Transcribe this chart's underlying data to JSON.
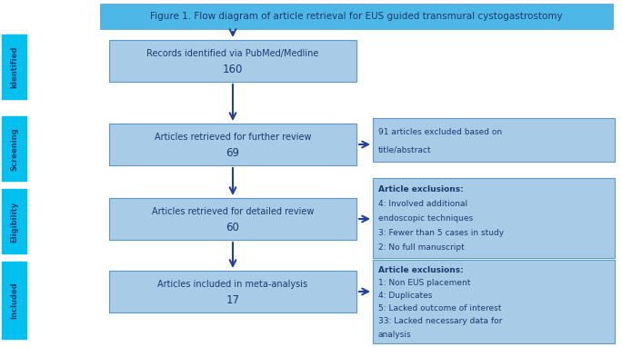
{
  "title": "Figure 1. Flow diagram of article retrieval for EUS guided transmural cystogastrostomy",
  "title_bg": "#4db8e8",
  "title_text_color": "#1a3a6e",
  "box_bg": "#a8cce8",
  "box_border": "#5a9ac8",
  "side_bg": "#00c0f0",
  "side_label_color": "#1a3a6e",
  "side_labels": [
    "Identified",
    "Screening",
    "Eligibility",
    "Included"
  ],
  "arrow_color": "#2040a0",
  "main_texts": [
    "Records identified via PubMed/Medline\n160",
    "Articles retrieved for further review\n69",
    "Articles retrieved for detailed review\n60",
    "Articles included in meta-analysis\n17"
  ],
  "side_box_texts": [
    "91 articles excluded based on\ntitle/abstract",
    "Article exclusions:\n4: Involved additional\nendoscopic techniques\n3: Fewer than 5 cases in study\n2: No full manuscript",
    "Article exclusions:\n1: Non EUS placement\n4: Duplicates\n5: Lacked outcome of interest\n33: Lacked necessary data for\nanalysis"
  ],
  "fig_bg": "#ffffff"
}
